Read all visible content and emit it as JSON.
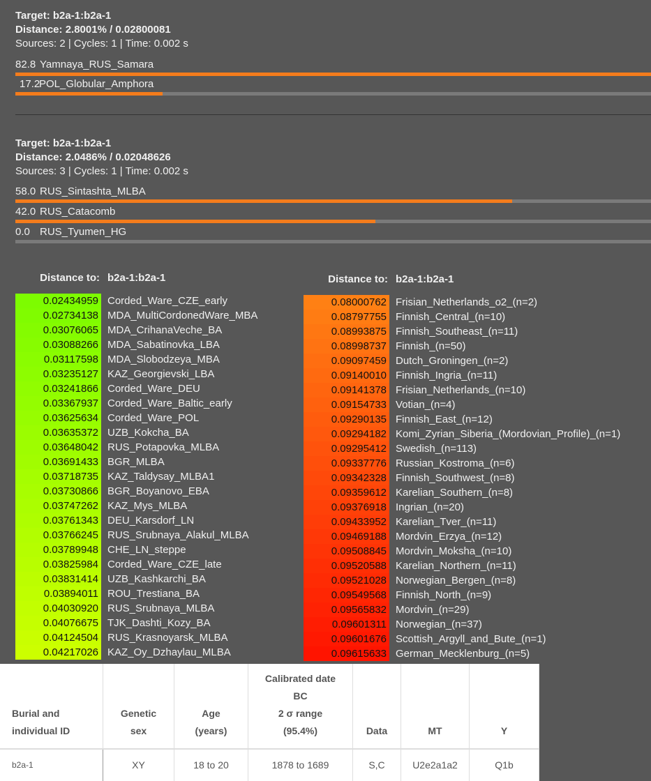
{
  "results": [
    {
      "target": "Target: b2a-1:b2a-1",
      "distance": "Distance: 2.8001% / 0.02800081",
      "info": "Sources: 2 | Cycles: 1 | Time: 0.002 s",
      "values": [
        82.8,
        17.2
      ],
      "names": [
        "Yamnaya_RUS_Samara",
        "POL_Globular_Amphora"
      ],
      "color": "#f47c1c"
    },
    {
      "target": "Target: b2a-1:b2a-1",
      "distance": "Distance: 2.0486% / 0.02048626",
      "info": "Sources: 3 | Cycles: 1 | Time: 0.002 s",
      "values": [
        58,
        42,
        0
      ],
      "value_labels": [
        "58.0",
        "42.0",
        "0.0"
      ],
      "names": [
        "RUS_Sintashta_MLBA",
        "RUS_Catacomb",
        "RUS_Tyumen_HG"
      ],
      "color": "#f47c1c"
    }
  ],
  "distance_tables": [
    {
      "header_label": "Distance to:",
      "header_target": "b2a-1:b2a-1",
      "color_from": "#7dfc00",
      "color_to": "#ccff00",
      "rows": [
        [
          "0.02434959",
          "Corded_Ware_CZE_early"
        ],
        [
          "0.02734138",
          "MDA_MultiCordonedWare_MBA"
        ],
        [
          "0.03076065",
          "MDA_CrihanaVeche_BA"
        ],
        [
          "0.03088266",
          "MDA_Sabatinovka_LBA"
        ],
        [
          "0.03117598",
          "MDA_Slobodzeya_MBA"
        ],
        [
          "0.03235127",
          "KAZ_Georgievski_LBA"
        ],
        [
          "0.03241866",
          "Corded_Ware_DEU"
        ],
        [
          "0.03367937",
          "Corded_Ware_Baltic_early"
        ],
        [
          "0.03625634",
          "Corded_Ware_POL"
        ],
        [
          "0.03635372",
          "UZB_Kokcha_BA"
        ],
        [
          "0.03648042",
          "RUS_Potapovka_MLBA"
        ],
        [
          "0.03691433",
          "BGR_MLBA"
        ],
        [
          "0.03718735",
          "KAZ_Taldysay_MLBA1"
        ],
        [
          "0.03730866",
          "BGR_Boyanovo_EBA"
        ],
        [
          "0.03747262",
          "KAZ_Mys_MLBA"
        ],
        [
          "0.03761343",
          "DEU_Karsdorf_LN"
        ],
        [
          "0.03766245",
          "RUS_Srubnaya_Alakul_MLBA"
        ],
        [
          "0.03789948",
          "CHE_LN_steppe"
        ],
        [
          "0.03825984",
          "Corded_Ware_CZE_late"
        ],
        [
          "0.03831414",
          "UZB_Kashkarchi_BA"
        ],
        [
          "0.03894011",
          "ROU_Trestiana_BA"
        ],
        [
          "0.04030920",
          "RUS_Srubnaya_MLBA"
        ],
        [
          "0.04076675",
          "TJK_Dashti_Kozy_BA"
        ],
        [
          "0.04124504",
          "RUS_Krasnoyarsk_MLBA"
        ],
        [
          "0.04217026",
          "KAZ_Oy_Dzhaylau_MLBA"
        ]
      ]
    },
    {
      "header_label": "Distance to:",
      "header_target": "b2a-1:b2a-1",
      "color_from": "#ff8014",
      "color_to": "#ff1400",
      "rows": [
        [
          "0.08000762",
          "Frisian_Netherlands_o2_(n=2)"
        ],
        [
          "0.08797755",
          "Finnish_Central_(n=10)"
        ],
        [
          "0.08993875",
          "Finnish_Southeast_(n=11)"
        ],
        [
          "0.08998737",
          "Finnish_(n=50)"
        ],
        [
          "0.09097459",
          "Dutch_Groningen_(n=2)"
        ],
        [
          "0.09140010",
          "Finnish_Ingria_(n=11)"
        ],
        [
          "0.09141378",
          "Frisian_Netherlands_(n=10)"
        ],
        [
          "0.09154733",
          "Votian_(n=4)"
        ],
        [
          "0.09290135",
          "Finnish_East_(n=12)"
        ],
        [
          "0.09294182",
          "Komi_Zyrian_Siberia_(Mordovian_Profile)_(n=1)"
        ],
        [
          "0.09295412",
          "Swedish_(n=113)"
        ],
        [
          "0.09337776",
          "Russian_Kostroma_(n=6)"
        ],
        [
          "0.09342328",
          "Finnish_Southwest_(n=8)"
        ],
        [
          "0.09359612",
          "Karelian_Southern_(n=8)"
        ],
        [
          "0.09376918",
          "Ingrian_(n=20)"
        ],
        [
          "0.09433952",
          "Karelian_Tver_(n=11)"
        ],
        [
          "0.09469188",
          "Mordvin_Erzya_(n=12)"
        ],
        [
          "0.09508845",
          "Mordvin_Moksha_(n=10)"
        ],
        [
          "0.09520588",
          "Karelian_Northern_(n=11)"
        ],
        [
          "0.09521028",
          "Norwegian_Bergen_(n=8)"
        ],
        [
          "0.09549568",
          "Finnish_North_(n=9)"
        ],
        [
          "0.09565832",
          "Mordvin_(n=29)"
        ],
        [
          "0.09601311",
          "Norwegian_(n=37)"
        ],
        [
          "0.09601676",
          "Scottish_Argyll_and_Bute_(n=1)"
        ],
        [
          "0.09615633",
          "German_Mecklenburg_(n=5)"
        ]
      ]
    }
  ],
  "table": {
    "headers": [
      [
        "Burial and",
        "individual ID"
      ],
      [
        "Genetic",
        "sex"
      ],
      [
        "Age",
        "(years)"
      ],
      [
        "Calibrated date",
        "BC",
        "2 σ range",
        "(95.4%)"
      ],
      [
        "Data"
      ],
      [
        "MT"
      ],
      [
        "Y"
      ]
    ],
    "rows": [
      [
        "b2a-1",
        "XY",
        "18 to 20",
        "1878 to 1689",
        "S,C",
        "U2e2a1a2",
        "Q1b"
      ]
    ]
  }
}
